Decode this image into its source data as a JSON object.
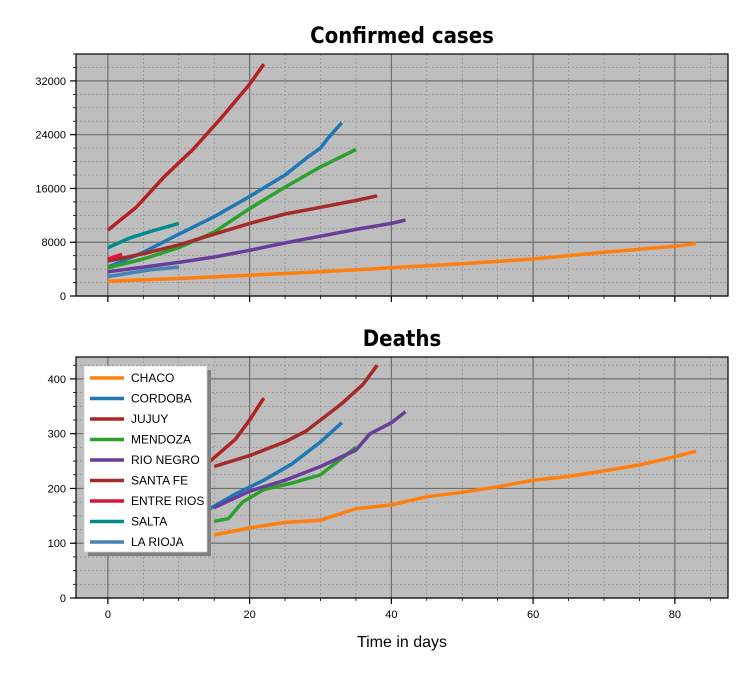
{
  "figure": {
    "xlabel": "Time in days"
  },
  "colors": {
    "plot_bg": "#bebebe",
    "minor_grid": "#858585",
    "major_grid": "#6e6e6e"
  },
  "chart_data": [
    {
      "type": "line",
      "title": "Confirmed cases",
      "xlabel": "",
      "ylabel": "",
      "xlim": [
        -4.5,
        87.5
      ],
      "ylim": [
        0,
        36000
      ],
      "xticks": [
        0,
        20,
        40,
        60,
        80
      ],
      "show_xtick_labels": false,
      "yticks": [
        0,
        8000,
        16000,
        24000,
        32000
      ],
      "ytick_labels": [
        "0",
        "8000",
        "16000",
        "24000",
        "32000"
      ],
      "grid": true,
      "series": [
        {
          "name": "CHACO",
          "color": "#ff7f0e",
          "x": [
            0,
            10,
            20,
            30,
            40,
            50,
            60,
            70,
            80,
            83
          ],
          "y": [
            2200,
            2600,
            3100,
            3600,
            4200,
            4800,
            5500,
            6500,
            7400,
            7800
          ]
        },
        {
          "name": "CORDOBA",
          "color": "#1f77b4",
          "x": [
            0,
            5,
            10,
            15,
            20,
            25,
            28,
            30,
            31,
            33
          ],
          "y": [
            4300,
            6500,
            9200,
            11800,
            14800,
            18000,
            20500,
            22000,
            23400,
            25800
          ]
        },
        {
          "name": "JUJUY",
          "color": "#b22222",
          "x": [
            0,
            4,
            8,
            12,
            16,
            20,
            22
          ],
          "y": [
            9800,
            13200,
            17800,
            21800,
            26500,
            31500,
            34500
          ]
        },
        {
          "name": "MENDOZA",
          "color": "#2ca02c",
          "x": [
            0,
            5,
            10,
            15,
            20,
            25,
            30,
            35
          ],
          "y": [
            4200,
            5500,
            7200,
            9500,
            13000,
            16200,
            19200,
            21800
          ]
        },
        {
          "name": "RIO NEGRO",
          "color": "#6a3d9a",
          "x": [
            0,
            5,
            10,
            15,
            20,
            25,
            30,
            35,
            40,
            42
          ],
          "y": [
            3600,
            4300,
            5000,
            5800,
            6800,
            7900,
            8900,
            9900,
            10800,
            11300
          ]
        },
        {
          "name": "SANTA FE",
          "color": "#a52a2a",
          "x": [
            0,
            5,
            10,
            15,
            20,
            25,
            30,
            35,
            38
          ],
          "y": [
            5200,
            6300,
            7600,
            9200,
            10800,
            12200,
            13200,
            14200,
            14900
          ]
        },
        {
          "name": "ENTRE RIOS",
          "color": "#dc143c",
          "x": [
            0,
            2
          ],
          "y": [
            5500,
            6200
          ]
        },
        {
          "name": "SALTA",
          "color": "#008b8b",
          "x": [
            0,
            3,
            6,
            10
          ],
          "y": [
            7200,
            8600,
            9600,
            10800
          ]
        },
        {
          "name": "LA RIOJA",
          "color": "#4682b4",
          "x": [
            0,
            3,
            6,
            10
          ],
          "y": [
            2900,
            3400,
            3900,
            4300
          ]
        }
      ]
    },
    {
      "type": "line",
      "title": "Deaths",
      "xlabel": "Time in days",
      "ylabel": "",
      "xlim": [
        -4.5,
        87.5
      ],
      "ylim": [
        0,
        440
      ],
      "xticks": [
        0,
        20,
        40,
        60,
        80
      ],
      "xtick_labels": [
        "0",
        "20",
        "40",
        "60",
        "80"
      ],
      "yticks": [
        0,
        100,
        200,
        300,
        400
      ],
      "ytick_labels": [
        "0",
        "100",
        "200",
        "300",
        "400"
      ],
      "grid": true,
      "legend_placement": "upper-left",
      "series": [
        {
          "name": "CHACO",
          "color": "#ff7f0e",
          "x": [
            15,
            20,
            25,
            30,
            35,
            40,
            45,
            50,
            55,
            60,
            65,
            70,
            75,
            80,
            83
          ],
          "y": [
            115,
            128,
            138,
            142,
            163,
            170,
            185,
            193,
            203,
            215,
            222,
            232,
            243,
            258,
            268
          ]
        },
        {
          "name": "CORDOBA",
          "color": "#1f77b4",
          "x": [
            14,
            18,
            22,
            26,
            30,
            33
          ],
          "y": [
            160,
            190,
            215,
            245,
            285,
            320
          ]
        },
        {
          "name": "JUJUY",
          "color": "#b22222",
          "x": [
            14,
            18,
            20,
            22
          ],
          "y": [
            245,
            290,
            325,
            365
          ]
        },
        {
          "name": "MENDOZA",
          "color": "#2ca02c",
          "x": [
            15,
            17,
            19,
            22,
            26,
            30,
            33,
            35
          ],
          "y": [
            140,
            145,
            175,
            198,
            210,
            225,
            255,
            275
          ]
        },
        {
          "name": "RIO NEGRO",
          "color": "#6a3d9a",
          "x": [
            15,
            20,
            25,
            30,
            35,
            37,
            40,
            42
          ],
          "y": [
            165,
            195,
            215,
            240,
            270,
            300,
            320,
            340
          ]
        },
        {
          "name": "SANTA FE",
          "color": "#a52a2a",
          "x": [
            15,
            20,
            25,
            28,
            30,
            33,
            36,
            38
          ],
          "y": [
            240,
            260,
            285,
            305,
            325,
            355,
            390,
            425
          ]
        },
        {
          "name": "ENTRE RIOS",
          "color": "#dc143c",
          "x": [],
          "y": []
        },
        {
          "name": "SALTA",
          "color": "#008b8b",
          "x": [],
          "y": []
        },
        {
          "name": "LA RIOJA",
          "color": "#4682b4",
          "x": [],
          "y": []
        }
      ]
    }
  ]
}
